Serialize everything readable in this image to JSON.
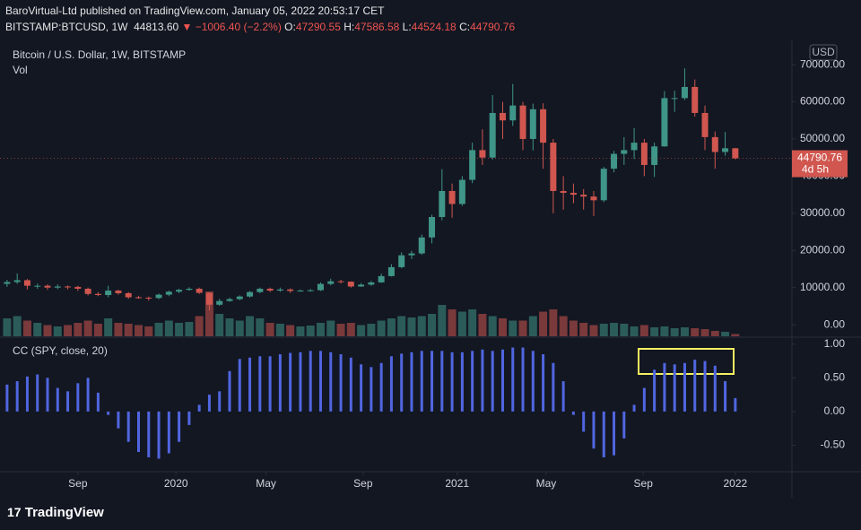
{
  "header": {
    "line1": "BaroVirtual-Ltd published on TradingView.com, January 05, 2022 20:53:17 CET",
    "symbol": "BITSTAMP:BTCUSD, 1W",
    "last": "44813.60",
    "change": "▼ −1006.40 (−2.2%)",
    "o_label": "O:",
    "o": "47290.55",
    "h_label": "H:",
    "h": "47586.58",
    "l_label": "L:",
    "l": "44524.18",
    "c_label": "C:",
    "c": "44790.76"
  },
  "footer": {
    "brand": "TradingView",
    "logo": "17"
  },
  "chart_data": [
    {
      "type": "candlestick",
      "title": "Bitcoin / U.S. Dollar, 1W, BITSTAMP",
      "volume_label": "Vol",
      "currency": "USD",
      "countdown": "4d 5h",
      "up_color": "#3f9587",
      "down_color": "#d0564f",
      "open": [
        11000,
        11500,
        12000,
        10500,
        10500,
        10000,
        10300,
        10200,
        9700,
        8300,
        8000,
        9200,
        8500,
        7400,
        7300,
        7200,
        8100,
        8900,
        9400,
        9700,
        8600,
        5400,
        6400,
        6900,
        7600,
        8800,
        9700,
        9200,
        9500,
        9100,
        9200,
        9300,
        11000,
        11700,
        11600,
        10300,
        10800,
        11400,
        13100,
        15500,
        18700,
        19200,
        23500,
        29000,
        36000,
        32500,
        39000,
        47000,
        45000,
        57000,
        55000,
        59000,
        50000,
        58000,
        49000,
        36000,
        35500,
        35000,
        34500,
        33500,
        42000,
        46000,
        47000,
        49000,
        43000,
        48000,
        61000,
        61000,
        64000,
        57000,
        50500,
        46500,
        47500
      ],
      "high": [
        12100,
        13800,
        12300,
        11100,
        10900,
        10900,
        10600,
        10500,
        10000,
        8800,
        10500,
        9400,
        8800,
        7800,
        7600,
        8400,
        9200,
        9700,
        10100,
        10000,
        8700,
        7000,
        7300,
        7900,
        9100,
        10000,
        10000,
        10000,
        9800,
        9500,
        9600,
        11400,
        12400,
        12100,
        11700,
        11200,
        11800,
        13800,
        16300,
        19500,
        19900,
        24300,
        29600,
        41900,
        38000,
        40000,
        49000,
        52600,
        61800,
        60000,
        64800,
        60000,
        59500,
        59600,
        50000,
        40000,
        38000,
        36500,
        36000,
        42500,
        46800,
        50500,
        52900,
        50000,
        49000,
        62900,
        63000,
        69000,
        66000,
        59000,
        52000,
        51900,
        47600
      ],
      "low": [
        10200,
        11000,
        9500,
        9700,
        9400,
        9600,
        9500,
        9100,
        7900,
        7700,
        7400,
        8100,
        7000,
        7000,
        6500,
        6900,
        7700,
        8500,
        9200,
        8300,
        3900,
        5100,
        6200,
        6600,
        7300,
        8500,
        8800,
        8900,
        8600,
        8900,
        8900,
        9100,
        10600,
        11100,
        10000,
        10200,
        10500,
        11300,
        13000,
        15200,
        17700,
        18800,
        21900,
        28100,
        28800,
        32000,
        38100,
        43000,
        44500,
        50000,
        53500,
        47000,
        46900,
        42000,
        30000,
        31000,
        32700,
        31000,
        29300,
        33000,
        41000,
        43000,
        44600,
        40000,
        39800,
        47900,
        57300,
        60500,
        56000,
        47000,
        42000,
        45500,
        44500
      ],
      "close": [
        11500,
        12000,
        10500,
        10500,
        10000,
        10300,
        10200,
        9700,
        8300,
        8000,
        9200,
        8500,
        7400,
        7300,
        7200,
        8100,
        8900,
        9400,
        9700,
        8600,
        5400,
        6400,
        6900,
        7600,
        8800,
        9700,
        9200,
        9500,
        9100,
        9200,
        9300,
        11000,
        11700,
        11600,
        10300,
        10800,
        11400,
        13100,
        15500,
        18700,
        19200,
        23500,
        29000,
        36000,
        32500,
        39000,
        47000,
        45000,
        57000,
        55000,
        59000,
        50000,
        58000,
        49000,
        36000,
        35500,
        35000,
        34500,
        33500,
        42000,
        46000,
        47000,
        49000,
        43000,
        48000,
        61000,
        61000,
        64000,
        57000,
        50500,
        46500,
        47500,
        44790.76
      ],
      "volume": [
        40,
        45,
        35,
        30,
        25,
        22,
        25,
        30,
        35,
        28,
        40,
        30,
        28,
        25,
        22,
        30,
        35,
        30,
        32,
        45,
        100,
        50,
        40,
        35,
        45,
        40,
        30,
        28,
        25,
        22,
        24,
        30,
        35,
        28,
        30,
        25,
        28,
        35,
        40,
        45,
        42,
        45,
        50,
        70,
        60,
        55,
        60,
        50,
        45,
        40,
        35,
        35,
        45,
        55,
        60,
        45,
        35,
        30,
        25,
        28,
        30,
        28,
        22,
        25,
        20,
        22,
        18,
        20,
        18,
        16,
        12,
        10,
        5
      ],
      "xlim": [
        -0.7,
        77.6
      ],
      "xticks": [
        {
          "value": 7.0,
          "label": "Sep"
        },
        {
          "value": 16.7,
          "label": "2020"
        },
        {
          "value": 25.6,
          "label": "May"
        },
        {
          "value": 35.2,
          "label": "Sep"
        },
        {
          "value": 44.5,
          "label": "2021"
        },
        {
          "value": 53.3,
          "label": "May"
        },
        {
          "value": 62.9,
          "label": "Sep"
        },
        {
          "value": 72.0,
          "label": "2022"
        }
      ],
      "ylim": [
        -3100,
        73400
      ],
      "yticks": [
        {
          "value": 70000,
          "label": "70000.00"
        },
        {
          "value": 60000,
          "label": "60000.00"
        },
        {
          "value": 50000,
          "label": "50000.00"
        },
        {
          "value": 40000,
          "label": "40000.00"
        },
        {
          "value": 30000,
          "label": "30000.00"
        },
        {
          "value": 20000,
          "label": "20000.00"
        },
        {
          "value": 10000,
          "label": "10000.00"
        },
        {
          "value": 0,
          "label": "0.00"
        }
      ]
    },
    {
      "type": "bar",
      "title": "CC (SPY, close, 20)",
      "color": "#5066e0",
      "values": [
        0.4,
        0.45,
        0.52,
        0.55,
        0.5,
        0.35,
        0.3,
        0.42,
        0.5,
        0.28,
        -0.05,
        -0.25,
        -0.45,
        -0.6,
        -0.68,
        -0.7,
        -0.62,
        -0.45,
        -0.2,
        0.1,
        0.25,
        0.3,
        0.6,
        0.78,
        0.8,
        0.82,
        0.82,
        0.85,
        0.87,
        0.88,
        0.9,
        0.9,
        0.88,
        0.85,
        0.8,
        0.7,
        0.66,
        0.72,
        0.82,
        0.86,
        0.88,
        0.9,
        0.9,
        0.9,
        0.88,
        0.88,
        0.9,
        0.92,
        0.9,
        0.92,
        0.95,
        0.95,
        0.9,
        0.85,
        0.72,
        0.45,
        -0.05,
        -0.3,
        -0.55,
        -0.68,
        -0.65,
        -0.4,
        0.1,
        0.35,
        0.62,
        0.72,
        0.7,
        0.72,
        0.77,
        0.75,
        0.68,
        0.45,
        0.2
      ],
      "ylim": [
        -0.88,
        1.09
      ],
      "yticks": [
        {
          "value": 1,
          "label": "1.00"
        },
        {
          "value": 0.5,
          "label": "0.50"
        },
        {
          "value": 0,
          "label": "0.00"
        },
        {
          "value": -0.5,
          "label": "-0.50"
        }
      ]
    }
  ]
}
